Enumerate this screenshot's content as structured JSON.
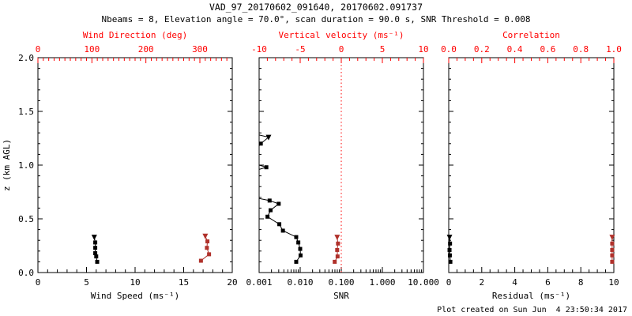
{
  "titles": {
    "title": "VAD_97_20170602_091640, 20170602.091737",
    "subtitle": "Nbeams = 8, Elevation angle = 70.0°, scan duration = 90.0 s, SNR Threshold = 0.008"
  },
  "footer": {
    "created": "Plot created on Sun Jun  4 23:50:34 2017"
  },
  "colors": {
    "frame": "#000000",
    "primary_series": "#000000",
    "secondary_series": "#b0312b",
    "top_axis": "#ff0000",
    "zero_line": "#ff0000",
    "background": "#ffffff"
  },
  "y_axis": {
    "label": "z (km AGL)",
    "range": [
      0,
      2
    ],
    "ticks": [
      0.0,
      0.5,
      1.0,
      1.5,
      2.0
    ],
    "tick_labels": [
      "0.0",
      "0.5",
      "1.0",
      "1.5",
      "2.0"
    ],
    "minor_step": 0.1
  },
  "chart_data": [
    {
      "type": "line",
      "panel": "wind",
      "bottom_axis": {
        "label": "Wind Speed (ms⁻¹)",
        "scale": "linear",
        "range": [
          0,
          20
        ],
        "ticks": [
          0,
          5,
          10,
          15,
          20
        ],
        "tick_labels": [
          "0",
          "5",
          "10",
          "15",
          "20"
        ],
        "minor_step": 1
      },
      "top_axis": {
        "label": "Wind Direction (deg)",
        "scale": "linear",
        "range": [
          0,
          360
        ],
        "ticks": [
          0,
          100,
          200,
          300
        ],
        "tick_labels": [
          "0",
          "100",
          "200",
          "300"
        ],
        "minor_step": 10
      },
      "series": [
        {
          "name": "wind_speed",
          "axis": "bottom",
          "color": "primary",
          "z": [
            0.33,
            0.28,
            0.23,
            0.18,
            0.15,
            0.1
          ],
          "values": [
            5.8,
            5.9,
            5.9,
            5.9,
            6.0,
            6.1
          ]
        },
        {
          "name": "wind_direction",
          "axis": "top",
          "color": "secondary",
          "z": [
            0.34,
            0.29,
            0.23,
            0.17,
            0.11
          ],
          "values": [
            310,
            314,
            313,
            317,
            302
          ]
        }
      ]
    },
    {
      "type": "line",
      "panel": "snr_velocity",
      "bottom_axis": {
        "label": "SNR",
        "scale": "log",
        "range": [
          0.001,
          10.0
        ],
        "ticks": [
          0.001,
          0.01,
          0.1,
          1.0,
          10.0
        ],
        "tick_labels": [
          "0.001",
          "0.010",
          "0.100",
          "1.000",
          "10.000"
        ]
      },
      "top_axis": {
        "label": "Vertical velocity (ms⁻¹)",
        "scale": "linear",
        "range": [
          -10,
          10
        ],
        "ticks": [
          -10,
          -5,
          0,
          5,
          10
        ],
        "tick_labels": [
          "-10",
          "-5",
          "0",
          "5",
          "10"
        ],
        "minor_step": 1
      },
      "zero_line": {
        "axis": "top",
        "value": 0,
        "style": "dotted"
      },
      "series": [
        {
          "name": "snr",
          "axis": "bottom",
          "color": "primary",
          "z": [
            1.26,
            1.2,
            0.98,
            0.67,
            0.64,
            0.58,
            0.52,
            0.45,
            0.39,
            0.33,
            0.28,
            0.22,
            0.16,
            0.1
          ],
          "values": [
            0.0017,
            0.0011,
            0.0015,
            0.0018,
            0.003,
            0.0019,
            0.0016,
            0.0031,
            0.0038,
            0.008,
            0.009,
            0.01,
            0.0102,
            0.008
          ],
          "line_path": {
            "z": [
              2.0,
              1.28,
              1.26,
              1.2,
              1.18,
              1.0,
              0.98,
              0.96,
              0.69,
              0.67,
              0.64,
              0.58,
              0.52,
              0.45,
              0.39,
              0.33,
              0.28,
              0.22,
              0.16,
              0.1
            ],
            "values": [
              0.001,
              0.001,
              0.0017,
              0.0011,
              0.001,
              0.001,
              0.0015,
              0.001,
              0.001,
              0.0018,
              0.003,
              0.0019,
              0.0016,
              0.0031,
              0.0038,
              0.008,
              0.009,
              0.01,
              0.0102,
              0.008
            ]
          }
        },
        {
          "name": "vertical_velocity",
          "axis": "top",
          "color": "secondary",
          "z": [
            0.33,
            0.27,
            0.21,
            0.15,
            0.1
          ],
          "values": [
            -0.5,
            -0.4,
            -0.5,
            -0.45,
            -0.8
          ]
        }
      ]
    },
    {
      "type": "line",
      "panel": "residual_correlation",
      "bottom_axis": {
        "label": "Residual (ms⁻¹)",
        "scale": "linear",
        "range": [
          0,
          10
        ],
        "ticks": [
          0,
          2,
          4,
          6,
          8,
          10
        ],
        "tick_labels": [
          "0",
          "2",
          "4",
          "6",
          "8",
          "10"
        ],
        "minor_step": 0.5
      },
      "top_axis": {
        "label": "Correlation",
        "scale": "linear",
        "range": [
          0,
          1
        ],
        "ticks": [
          0.0,
          0.2,
          0.4,
          0.6,
          0.8,
          1.0
        ],
        "tick_labels": [
          "0.0",
          "0.2",
          "0.4",
          "0.6",
          "0.8",
          "1.0"
        ],
        "minor_step": 0.05
      },
      "series": [
        {
          "name": "residual",
          "axis": "bottom",
          "color": "primary",
          "z": [
            0.33,
            0.27,
            0.21,
            0.16,
            0.1
          ],
          "values": [
            0.05,
            0.08,
            0.05,
            0.07,
            0.1
          ]
        },
        {
          "name": "correlation",
          "axis": "top",
          "color": "secondary",
          "z": [
            0.33,
            0.27,
            0.21,
            0.16,
            0.1
          ],
          "values": [
            0.99,
            0.99,
            0.99,
            0.99,
            0.99
          ]
        }
      ]
    }
  ]
}
